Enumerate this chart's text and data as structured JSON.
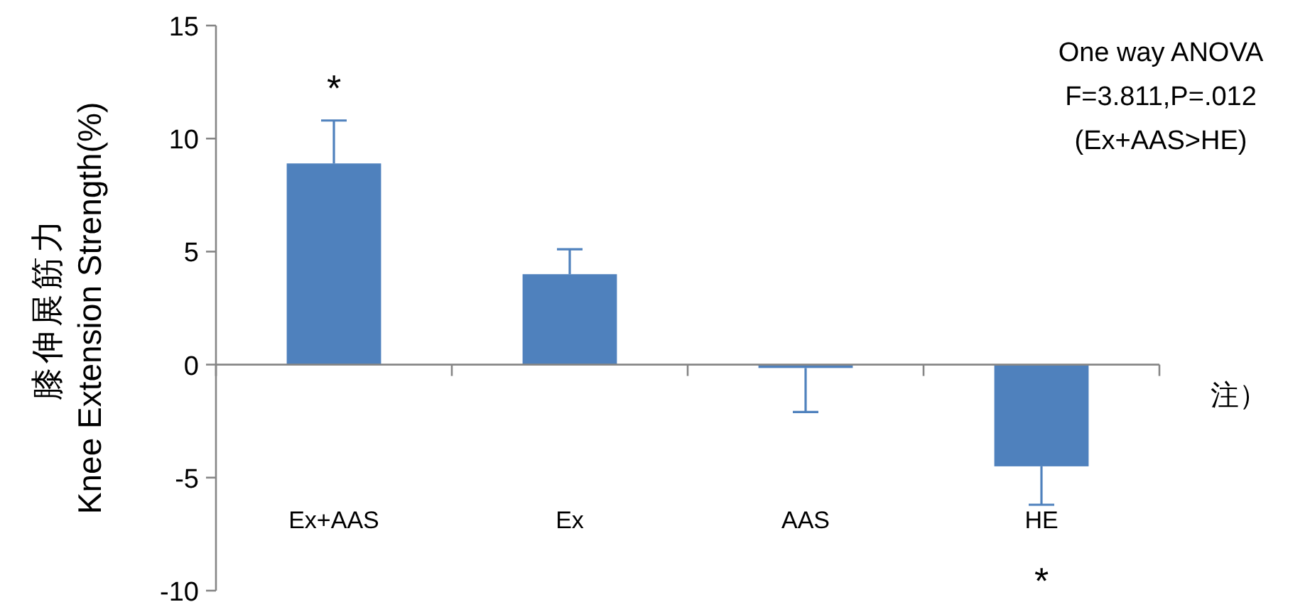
{
  "chart_data": {
    "type": "bar",
    "ylabel": "膝伸展筋力\nKnee Extension Strength(%)",
    "categories": [
      "Ex+AAS",
      "Ex",
      "AAS",
      "HE"
    ],
    "values": [
      8.9,
      4.0,
      -0.15,
      -4.5
    ],
    "errors": [
      [
        8.9,
        10.8
      ],
      [
        4.0,
        5.1
      ],
      [
        -2.1,
        -0.15
      ],
      [
        -6.2,
        -4.5
      ]
    ],
    "color": "#4f81bd",
    "ylim": [
      -10,
      15
    ],
    "yticks": [
      -10,
      -5,
      0,
      5,
      10,
      15
    ],
    "annotations": [
      "*",
      "*",
      "One way ANOVA\nF=3.811,P=.012\n(Ex+AAS>HE)",
      "注）"
    ]
  }
}
